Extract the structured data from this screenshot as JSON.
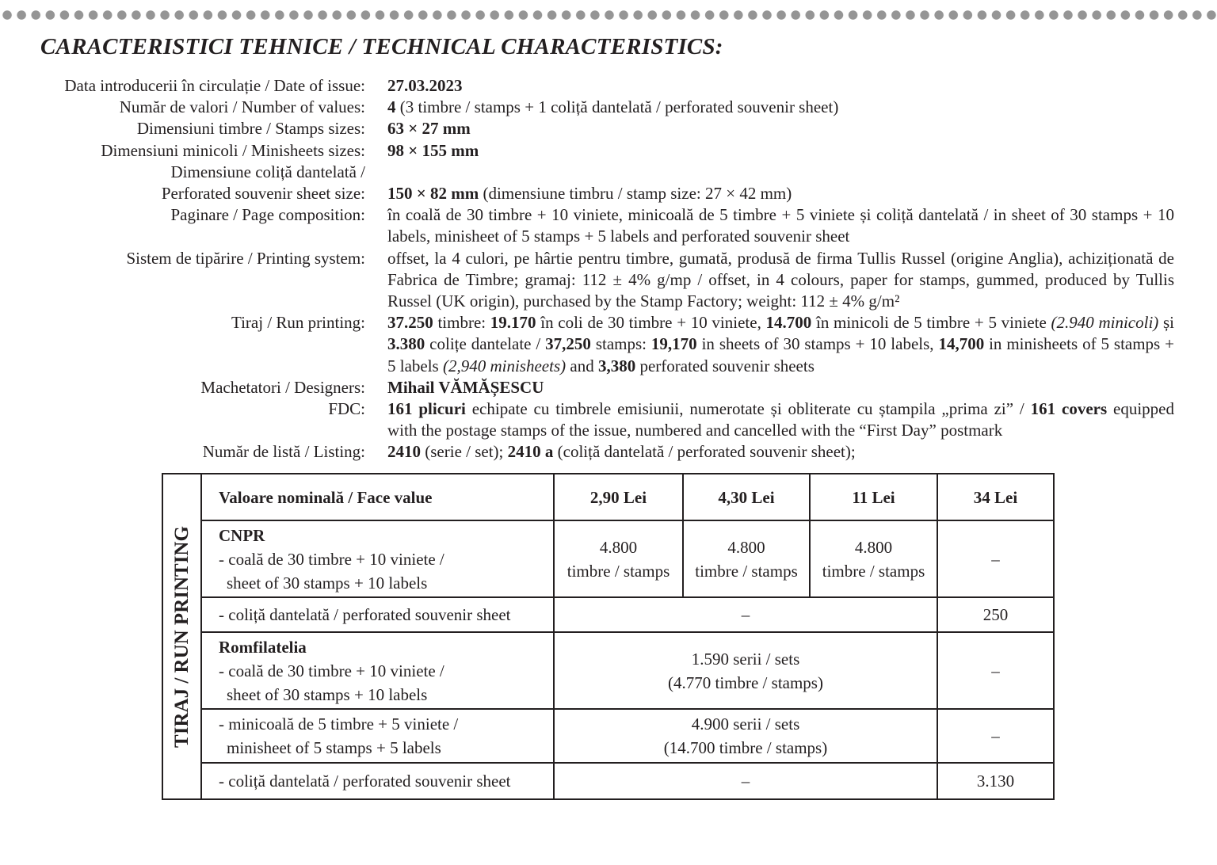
{
  "title": "CARACTERISTICI TEHNICE / TECHNICAL CHARACTERISTICS:",
  "specs": [
    {
      "label": "Data introducerii în circulație / Date of issue:",
      "value": [
        {
          "t": "27.03.2023",
          "b": true
        }
      ]
    },
    {
      "label": "Număr de valori / Number of values:",
      "value": [
        {
          "t": "4",
          "b": true
        },
        {
          "t": " (3 timbre / stamps + 1 coliță dantelată / perforated souvenir sheet)"
        }
      ]
    },
    {
      "label": "Dimensiuni timbre / Stamps sizes:",
      "value": [
        {
          "t": "63 × 27 mm",
          "b": true
        }
      ]
    },
    {
      "label": "Dimensiuni minicoli / Minisheets sizes:",
      "value": [
        {
          "t": "98 × 155 mm",
          "b": true
        }
      ]
    },
    {
      "label": "Dimensiune coliță dantelată /",
      "value": []
    },
    {
      "label": "Perforated souvenir sheet size:",
      "value": [
        {
          "t": "150 × 82 mm",
          "b": true
        },
        {
          "t": " (dimensiune timbru / stamp size: 27 × 42 mm)"
        }
      ]
    },
    {
      "label": "Paginare / Page composition:",
      "value": [
        {
          "t": "în coală de 30 timbre + 10 viniete, minicoală de 5 timbre + 5 viniete și coliță dantelată / in sheet of 30 stamps + 10 labels, minisheet of 5 stamps + 5 labels and perforated souvenir sheet"
        }
      ]
    },
    {
      "label": "Sistem de tipărire / Printing system:",
      "value": [
        {
          "t": "offset, la 4 culori, pe hârtie pentru timbre, gumată, produsă de firma Tullis Russel (origine Anglia), achiziționată de Fabrica de Timbre; gramaj: 112 ± 4% g/mp / offset, in 4 colours, paper for stamps, gummed, produced by Tullis Russel (UK origin), purchased by the Stamp Factory; weight: 112 ± 4% g/m²"
        }
      ]
    },
    {
      "label": "Tiraj / Run printing:",
      "value": [
        {
          "t": "37.250",
          "b": true
        },
        {
          "t": " timbre: "
        },
        {
          "t": "19.170",
          "b": true
        },
        {
          "t": " în coli de 30 timbre + 10 viniete, "
        },
        {
          "t": "14.700",
          "b": true
        },
        {
          "t": " în minicoli de 5 timbre + 5 viniete "
        },
        {
          "t": "(2.940 minicoli)",
          "i": true
        },
        {
          "t": " și "
        },
        {
          "t": "3.380",
          "b": true
        },
        {
          "t": " colițe dantelate / "
        },
        {
          "t": "37,250",
          "b": true
        },
        {
          "t": " stamps: "
        },
        {
          "t": "19,170",
          "b": true
        },
        {
          "t": " in sheets of 30 stamps + 10 labels, "
        },
        {
          "t": "14,700",
          "b": true
        },
        {
          "t": " in minisheets of 5 stamps + 5 labels "
        },
        {
          "t": "(2,940 minisheets)",
          "i": true
        },
        {
          "t": " and "
        },
        {
          "t": "3,380",
          "b": true
        },
        {
          "t": " perforated souvenir sheets"
        }
      ]
    },
    {
      "label": "Machetatori / Designers:",
      "value": [
        {
          "t": "Mihail VĂMĂȘESCU",
          "b": true
        }
      ]
    },
    {
      "label": "FDC:",
      "value": [
        {
          "t": "161 plicuri",
          "b": true
        },
        {
          "t": " echipate cu timbrele emisiunii, numerotate și obliterate cu ștampila „prima zi” / "
        },
        {
          "t": "161 covers",
          "b": true
        },
        {
          "t": " equipped with the postage stamps of the issue, numbered and cancelled with the “First Day” postmark"
        }
      ]
    },
    {
      "label": "Număr de listă / Listing:",
      "value": [
        {
          "t": "2410",
          "b": true
        },
        {
          "t": " (serie / set); "
        },
        {
          "t": "2410 a",
          "b": true
        },
        {
          "t": " (coliță dantelată / perforated souvenir sheet);"
        }
      ]
    }
  ],
  "table": {
    "side_label": "TIRAJ / RUN PRINTING",
    "header": {
      "label": "Valoare nominală / Face value",
      "values": [
        "2,90 Lei",
        "4,30 Lei",
        "11 Lei",
        "34 Lei"
      ]
    },
    "cnpr": {
      "title": "CNPR",
      "sheet_line1": "- coală de 30 timbre + 10 viniete /",
      "sheet_line2": "sheet of 30 stamps + 10 labels",
      "sheet_values": [
        {
          "n": "4.800",
          "u": "timbre / stamps"
        },
        {
          "n": "4.800",
          "u": "timbre / stamps"
        },
        {
          "n": "4.800",
          "u": "timbre / stamps"
        }
      ],
      "sheet_last": "–",
      "souvenir_label": "- coliță dantelată / perforated souvenir sheet",
      "souvenir_mid": "–",
      "souvenir_last": "250"
    },
    "romfilatelia": {
      "title": "Romfilatelia",
      "sheet_line1": "- coală de 30 timbre + 10 viniete /",
      "sheet_line2": "sheet of 30 stamps + 10 labels",
      "sheet_mid1": "1.590 serii / sets",
      "sheet_mid2": "(4.770 timbre / stamps)",
      "sheet_last": "–",
      "mini_line1": "- minicoală de 5 timbre + 5 viniete /",
      "mini_line2": "minisheet of 5 stamps + 5 labels",
      "mini_mid1": "4.900 serii / sets",
      "mini_mid2": "(14.700 timbre / stamps)",
      "mini_last": "–",
      "souvenir_label": "- coliță dantelată / perforated souvenir sheet",
      "souvenir_mid": "–",
      "souvenir_last": "3.130"
    }
  }
}
